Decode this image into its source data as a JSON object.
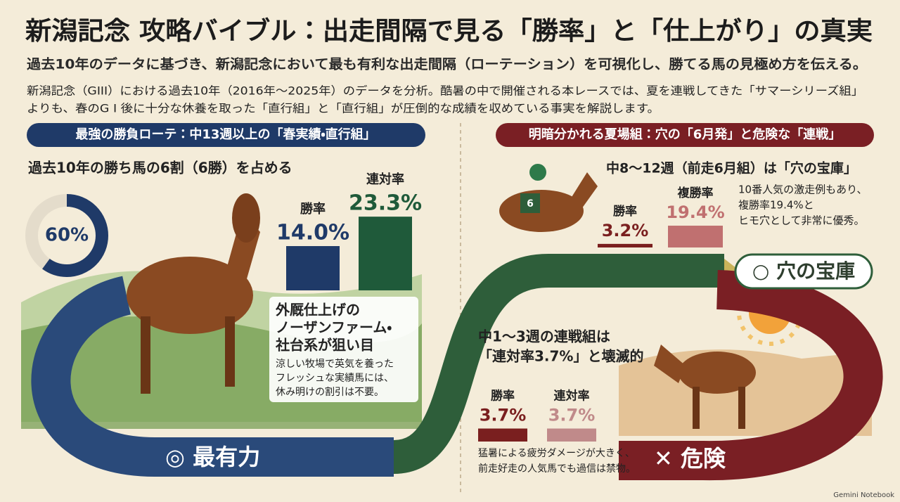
{
  "header": {
    "title": "新潟記念 攻略バイブル：出走間隔で見る「勝率」と「仕上がり」の真実",
    "subtitle": "過去10年のデータに基づき、新潟記念において最も有利な出走間隔（ローテーション）を可視化し、勝てる馬の見極め方を伝える。",
    "description": [
      "新潟記念（GIII）における過去10年（2016年～2025年）のデータを分析。酷暑の中で開催される本レースでは、夏を連戦してきた「サマーシリーズ組」",
      "よりも、春のG I 後に十分な休養を取った「直行組」と「直行組」が圧倒的な成績を収めている事実を解説します。"
    ]
  },
  "left": {
    "heading": "最強の勝負ローテ：中13週以上の「春実績・直行組」",
    "subheading": "過去10年の勝ち馬の6割（6勝）を占める",
    "share": {
      "value": 60,
      "label": "60%"
    },
    "stats": [
      {
        "name": "勝率",
        "value": 14,
        "label": "14.0%",
        "color": "#1f3a68"
      },
      {
        "name": "連対率",
        "value": 23.3,
        "label": "23.3%",
        "color": "#1f5a3a"
      }
    ],
    "caption": {
      "title": [
        "外厩仕上げの",
        "ノーザンファーム・",
        "社台系が狙い目"
      ],
      "text": [
        "涼しい牧場で英気を養った",
        "フレッシュな実績馬には、",
        "休み明けの割引は不要。"
      ]
    },
    "badge": "◎ 最有力"
  },
  "right": {
    "heading": "明暗分かれる夏場組：穴の「6月発」と危険な「連戦」",
    "june": {
      "title": "中8～12週（前走6月組）は「穴の宝庫」",
      "jockey_number": "6",
      "stats": [
        {
          "name": "勝率",
          "value": 3.2,
          "label": "3.2%",
          "color": "#7a1f1f"
        },
        {
          "name": "複勝率",
          "value": 19.4,
          "label": "19.4%",
          "color": "#c07070"
        }
      ],
      "note": [
        "10番人気の激走例もあり、",
        "複勝率19.4%と",
        "ヒモ穴として非常に優秀。"
      ],
      "badge": "○ 穴の宝庫"
    },
    "consecutive": {
      "title": [
        "中1～3週の連戦組は",
        "「連対率3.7%」と壊滅的"
      ],
      "stats": [
        {
          "name": "勝率",
          "value": 3.7,
          "label": "3.7%",
          "color": "#7a1f1f"
        },
        {
          "name": "連対率",
          "value": 3.7,
          "label": "3.7%",
          "color": "#c08a8a"
        }
      ],
      "note": [
        "猛暑による疲労ダメージが大きく、",
        "前走好走の人気馬でも過信は禁物。"
      ],
      "badge": "✕ 危険"
    }
  },
  "footer": "Gemini Notebook"
}
